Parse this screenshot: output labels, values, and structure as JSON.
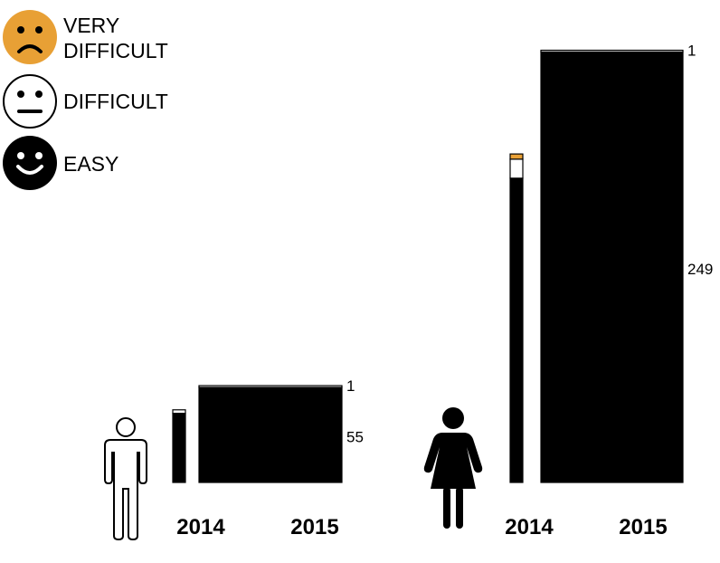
{
  "legend": {
    "very_difficult": {
      "line1": "VERY",
      "line2": "DIFFICULT"
    },
    "difficult": "DIFFICULT",
    "easy": "EASY"
  },
  "colors": {
    "very_difficult": "#e8a035",
    "difficult": "#ffffff",
    "easy": "#000000"
  },
  "icons": {
    "very_difficult": "frown-face-icon",
    "difficult": "neutral-face-icon",
    "easy": "smile-face-icon",
    "men": "man-icon",
    "women": "woman-icon"
  },
  "chart_data": {
    "type": "bar",
    "stacked": true,
    "categories": [
      "VERY DIFFICULT",
      "DIFFICULT",
      "EASY"
    ],
    "groups": [
      {
        "icon": "man-icon",
        "bars": [
          {
            "year": "2014",
            "values": {
              "very_difficult": 0,
              "difficult": 2,
              "easy": 40
            }
          },
          {
            "year": "2015",
            "values": {
              "very_difficult": 0,
              "difficult": 1,
              "easy": 55
            },
            "labels": {
              "difficult": "1",
              "easy": "55"
            }
          }
        ]
      },
      {
        "icon": "woman-icon",
        "bars": [
          {
            "year": "2014",
            "values": {
              "very_difficult": 3,
              "difficult": 11,
              "easy": 176
            }
          },
          {
            "year": "2015",
            "values": {
              "very_difficult": 0,
              "difficult": 1,
              "easy": 249
            },
            "labels": {
              "difficult": "1",
              "easy": "249"
            }
          }
        ]
      }
    ]
  }
}
